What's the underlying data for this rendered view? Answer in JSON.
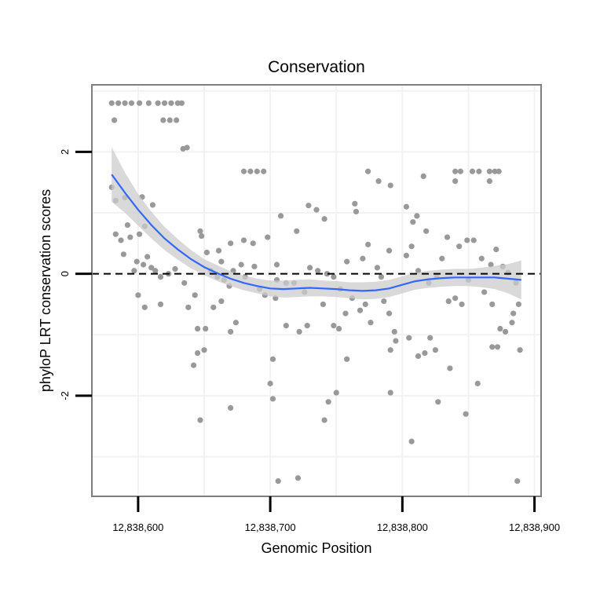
{
  "chart_data": {
    "type": "scatter",
    "title": "Conservation",
    "xlabel": "Genomic Position",
    "ylabel": "phyloP LRT conservation scores",
    "xlim": [
      12838565,
      12838905
    ],
    "ylim": [
      -3.65,
      3.1
    ],
    "x_ticks": [
      12838600,
      12838700,
      12838800,
      12838900
    ],
    "x_tick_labels": [
      "12,838,600",
      "12,838,700",
      "12,838,800",
      "12,838,900"
    ],
    "y_ticks": [
      -2,
      0,
      2
    ],
    "y_tick_labels": [
      "-2",
      "0",
      "2"
    ],
    "y_minor_gridlines": [
      -3,
      -1,
      1,
      3
    ],
    "x_minor_gridlines": [
      12838650,
      12838750,
      12838850
    ],
    "reference_line": {
      "y": 0,
      "style": "dashed"
    },
    "grid": true,
    "colors": {
      "points": "#999999",
      "smooth_line": "#3366ff",
      "ribbon": "#cccccc",
      "reference_line": "#000000",
      "grid": "#f2f2f2",
      "panel_border": "#7f7f7f"
    },
    "smooth": {
      "method": "loess",
      "x": [
        12838580,
        12838590,
        12838600,
        12838610,
        12838620,
        12838630,
        12838640,
        12838650,
        12838660,
        12838670,
        12838680,
        12838690,
        12838700,
        12838710,
        12838720,
        12838730,
        12838740,
        12838750,
        12838760,
        12838770,
        12838780,
        12838790,
        12838800,
        12838810,
        12838820,
        12838830,
        12838840,
        12838850,
        12838860,
        12838870,
        12838880,
        12838890
      ],
      "y": [
        1.63,
        1.33,
        1.05,
        0.8,
        0.58,
        0.4,
        0.24,
        0.11,
        0.01,
        -0.08,
        -0.15,
        -0.2,
        -0.24,
        -0.25,
        -0.24,
        -0.23,
        -0.24,
        -0.25,
        -0.27,
        -0.28,
        -0.27,
        -0.24,
        -0.18,
        -0.12,
        -0.09,
        -0.07,
        -0.06,
        -0.06,
        -0.06,
        -0.06,
        -0.08,
        -0.1
      ],
      "lower": [
        1.18,
        1.0,
        0.79,
        0.58,
        0.39,
        0.23,
        0.09,
        -0.02,
        -0.12,
        -0.2,
        -0.27,
        -0.32,
        -0.37,
        -0.39,
        -0.38,
        -0.37,
        -0.37,
        -0.38,
        -0.4,
        -0.42,
        -0.41,
        -0.38,
        -0.32,
        -0.26,
        -0.23,
        -0.21,
        -0.2,
        -0.2,
        -0.22,
        -0.25,
        -0.32,
        -0.42
      ],
      "upper": [
        2.08,
        1.66,
        1.31,
        1.02,
        0.77,
        0.57,
        0.39,
        0.24,
        0.14,
        0.04,
        -0.03,
        -0.08,
        -0.11,
        -0.11,
        -0.1,
        -0.09,
        -0.11,
        -0.12,
        -0.14,
        -0.14,
        -0.13,
        -0.1,
        -0.04,
        0.02,
        0.05,
        0.07,
        0.08,
        0.08,
        0.1,
        0.13,
        0.16,
        0.22
      ]
    },
    "points": [
      [
        12838580,
        2.8
      ],
      [
        12838585,
        2.8
      ],
      [
        12838590,
        2.8
      ],
      [
        12838595,
        2.8
      ],
      [
        12838601,
        2.8
      ],
      [
        12838608,
        2.8
      ],
      [
        12838615,
        2.8
      ],
      [
        12838620,
        2.8
      ],
      [
        12838625,
        2.8
      ],
      [
        12838630,
        2.8
      ],
      [
        12838633,
        2.8
      ],
      [
        12838582,
        2.52
      ],
      [
        12838619,
        2.52
      ],
      [
        12838624,
        2.52
      ],
      [
        12838629,
        2.52
      ],
      [
        12838634,
        2.05
      ],
      [
        12838637,
        2.07
      ],
      [
        12838680,
        1.68
      ],
      [
        12838685,
        1.68
      ],
      [
        12838690,
        1.68
      ],
      [
        12838695,
        1.68
      ],
      [
        12838774,
        1.68
      ],
      [
        12838782,
        1.52
      ],
      [
        12838791,
        1.45
      ],
      [
        12838816,
        1.6
      ],
      [
        12838840,
        1.68
      ],
      [
        12838840,
        1.52
      ],
      [
        12838844,
        1.68
      ],
      [
        12838853,
        1.68
      ],
      [
        12838858,
        1.68
      ],
      [
        12838866,
        1.68
      ],
      [
        12838870,
        1.68
      ],
      [
        12838873,
        1.68
      ],
      [
        12838866,
        1.52
      ],
      [
        12838580,
        1.42
      ],
      [
        12838583,
        1.2
      ],
      [
        12838590,
        1.25
      ],
      [
        12838603,
        1.26
      ],
      [
        12838611,
        1.13
      ],
      [
        12838583,
        0.65
      ],
      [
        12838587,
        0.55
      ],
      [
        12838592,
        0.8
      ],
      [
        12838594,
        0.6
      ],
      [
        12838601,
        0.65
      ],
      [
        12838605,
        0.78
      ],
      [
        12838589,
        0.32
      ],
      [
        12838597,
        0.05
      ],
      [
        12838599,
        0.2
      ],
      [
        12838604,
        0.15
      ],
      [
        12838607,
        0.28
      ],
      [
        12838610,
        0.1
      ],
      [
        12838613,
        0.05
      ],
      [
        12838617,
        -0.05
      ],
      [
        12838623,
        0.0
      ],
      [
        12838628,
        0.08
      ],
      [
        12838600,
        -0.35
      ],
      [
        12838605,
        -0.55
      ],
      [
        12838617,
        -0.5
      ],
      [
        12838635,
        -0.15
      ],
      [
        12838638,
        -0.55
      ],
      [
        12838643,
        -0.35
      ],
      [
        12838647,
        0.7
      ],
      [
        12838648,
        0.62
      ],
      [
        12838652,
        0.35
      ],
      [
        12838661,
        0.38
      ],
      [
        12838670,
        0.5
      ],
      [
        12838680,
        0.55
      ],
      [
        12838687,
        0.5
      ],
      [
        12838698,
        0.6
      ],
      [
        12838655,
        0.05
      ],
      [
        12838660,
        -0.05
      ],
      [
        12838663,
        0.2
      ],
      [
        12838665,
        -0.1
      ],
      [
        12838669,
        -0.2
      ],
      [
        12838672,
        0.05
      ],
      [
        12838678,
        0.15
      ],
      [
        12838681,
        -0.05
      ],
      [
        12838688,
        0.12
      ],
      [
        12838692,
        -0.25
      ],
      [
        12838696,
        -0.35
      ],
      [
        12838645,
        -0.9
      ],
      [
        12838651,
        -0.9
      ],
      [
        12838657,
        -0.55
      ],
      [
        12838663,
        -0.45
      ],
      [
        12838670,
        -0.95
      ],
      [
        12838674,
        -0.8
      ],
      [
        12838642,
        -1.5
      ],
      [
        12838645,
        -1.3
      ],
      [
        12838650,
        -1.25
      ],
      [
        12838647,
        -2.4
      ],
      [
        12838670,
        -2.2
      ],
      [
        12838705,
        0.15
      ],
      [
        12838708,
        0.95
      ],
      [
        12838720,
        0.7
      ],
      [
        12838729,
        1.12
      ],
      [
        12838735,
        1.05
      ],
      [
        12838741,
        0.9
      ],
      [
        12838705,
        -0.1
      ],
      [
        12838712,
        -0.15
      ],
      [
        12838718,
        -0.15
      ],
      [
        12838726,
        -0.3
      ],
      [
        12838730,
        0.1
      ],
      [
        12838736,
        0.05
      ],
      [
        12838743,
        0.0
      ],
      [
        12838748,
        -0.05
      ],
      [
        12838753,
        -0.25
      ],
      [
        12838704,
        -0.4
      ],
      [
        12838712,
        -0.85
      ],
      [
        12838722,
        -0.95
      ],
      [
        12838728,
        -0.85
      ],
      [
        12838740,
        -0.5
      ],
      [
        12838748,
        -0.85
      ],
      [
        12838752,
        -0.9
      ],
      [
        12838757,
        -0.65
      ],
      [
        12838702,
        -1.4
      ],
      [
        12838700,
        -1.8
      ],
      [
        12838702,
        -2.05
      ],
      [
        12838744,
        -2.1
      ],
      [
        12838750,
        -1.95
      ],
      [
        12838758,
        -1.4
      ],
      [
        12838741,
        -2.4
      ],
      [
        12838706,
        -3.4
      ],
      [
        12838721,
        -3.35
      ],
      [
        12838764,
        1.15
      ],
      [
        12838765,
        1.02
      ],
      [
        12838758,
        0.2
      ],
      [
        12838770,
        0.25
      ],
      [
        12838774,
        0.48
      ],
      [
        12838781,
        0.1
      ],
      [
        12838784,
        -0.05
      ],
      [
        12838790,
        0.38
      ],
      [
        12838762,
        -0.4
      ],
      [
        12838768,
        -0.6
      ],
      [
        12838772,
        -0.5
      ],
      [
        12838776,
        -0.8
      ],
      [
        12838786,
        -0.45
      ],
      [
        12838790,
        -0.65
      ],
      [
        12838794,
        -0.95
      ],
      [
        12838795,
        -1.1
      ],
      [
        12838791,
        -1.25
      ],
      [
        12838805,
        -1.05
      ],
      [
        12838791,
        -1.95
      ],
      [
        12838807,
        -2.75
      ],
      [
        12838803,
        1.1
      ],
      [
        12838808,
        0.85
      ],
      [
        12838811,
        0.95
      ],
      [
        12838818,
        0.7
      ],
      [
        12838803,
        0.3
      ],
      [
        12838807,
        0.45
      ],
      [
        12838812,
        0.05
      ],
      [
        12838820,
        -0.15
      ],
      [
        12838826,
        -0.05
      ],
      [
        12838830,
        0.25
      ],
      [
        12838835,
        -0.45
      ],
      [
        12838840,
        -0.4
      ],
      [
        12838845,
        -0.5
      ],
      [
        12838850,
        -0.1
      ],
      [
        12838812,
        -1.35
      ],
      [
        12838817,
        -1.3
      ],
      [
        12838821,
        -1.05
      ],
      [
        12838825,
        -1.25
      ],
      [
        12838827,
        -2.1
      ],
      [
        12838836,
        -1.55
      ],
      [
        12838848,
        -2.3
      ],
      [
        12838857,
        -1.8
      ],
      [
        12838834,
        0.6
      ],
      [
        12838843,
        0.45
      ],
      [
        12838849,
        0.55
      ],
      [
        12838854,
        0.55
      ],
      [
        12838860,
        0.25
      ],
      [
        12838867,
        0.15
      ],
      [
        12838871,
        0.4
      ],
      [
        12838876,
        0.12
      ],
      [
        12838880,
        0.02
      ],
      [
        12838886,
        -0.15
      ],
      [
        12838862,
        -0.3
      ],
      [
        12838868,
        -0.5
      ],
      [
        12838874,
        -0.9
      ],
      [
        12838878,
        -0.95
      ],
      [
        12838884,
        -0.65
      ],
      [
        12838888,
        -0.5
      ],
      [
        12838868,
        -1.2
      ],
      [
        12838872,
        -1.2
      ],
      [
        12838883,
        -0.8
      ],
      [
        12838889,
        -1.25
      ],
      [
        12838887,
        -3.4
      ]
    ]
  }
}
